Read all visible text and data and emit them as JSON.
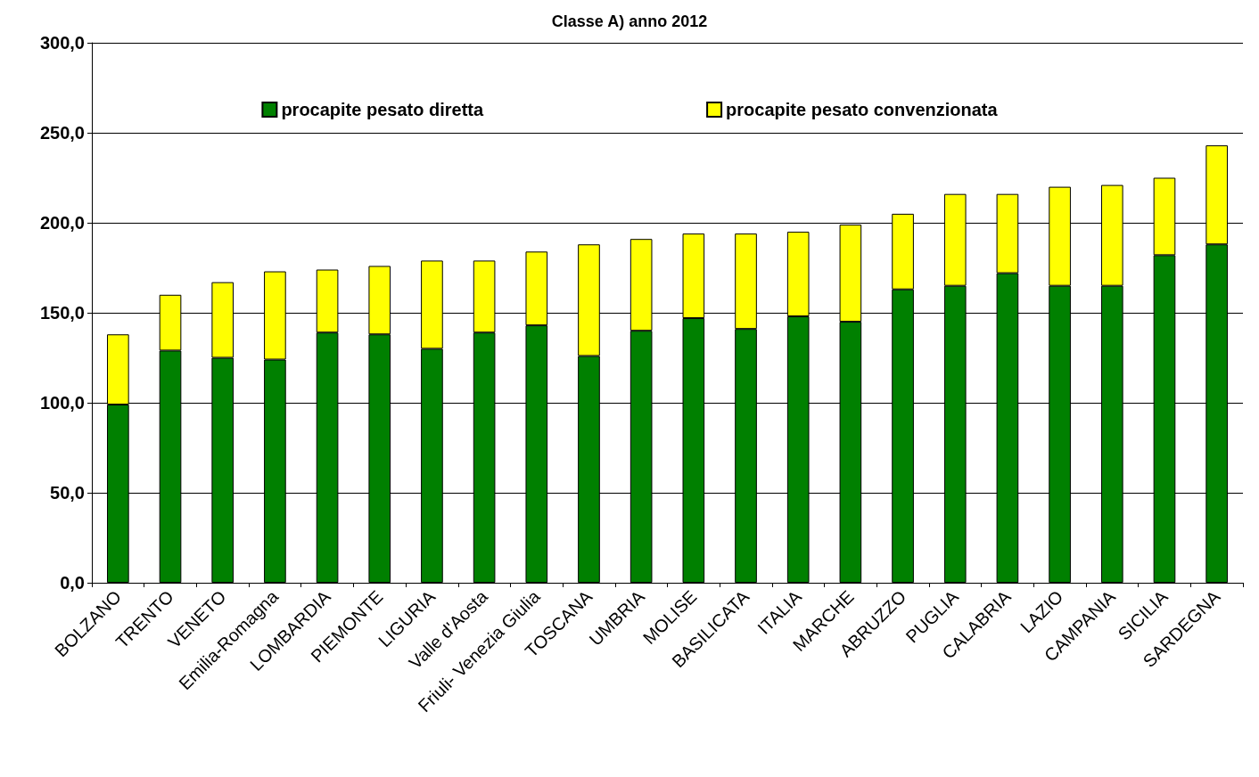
{
  "chart_data": {
    "type": "bar",
    "title": "Classe A) anno 2012",
    "stacked": true,
    "categories": [
      "BOLZANO",
      "TRENTO",
      "VENETO",
      "Emilia-Romagna",
      "LOMBARDIA",
      "PIEMONTE",
      "LIGURIA",
      "Valle d'Aosta",
      "Friuli- Venezia Giulia",
      "TOSCANA",
      "UMBRIA",
      "MOLISE",
      "BASILICATA",
      "ITALIA",
      "MARCHE",
      "ABRUZZO",
      "PUGLIA",
      "CALABRIA",
      "LAZIO",
      "CAMPANIA",
      "SICILIA",
      "SARDEGNA"
    ],
    "series": [
      {
        "name": "procapite pesato diretta",
        "color": "#008000",
        "values": [
          99,
          129,
          125,
          124,
          139,
          138,
          130,
          139,
          143,
          126,
          140,
          147,
          141,
          148,
          145,
          163,
          165,
          172,
          165,
          165,
          182,
          188
        ]
      },
      {
        "name": "procapite pesato convenzionata",
        "color": "#ffff00",
        "values": [
          39,
          31,
          42,
          49,
          35,
          38,
          49,
          40,
          41,
          62,
          51,
          47,
          53,
          47,
          54,
          42,
          51,
          44,
          55,
          56,
          43,
          55
        ]
      }
    ],
    "ylim": [
      0,
      300
    ],
    "yticks": [
      {
        "value": 0,
        "label": "0,0"
      },
      {
        "value": 50,
        "label": "50,0"
      },
      {
        "value": 100,
        "label": "100,0"
      },
      {
        "value": 150,
        "label": "150,0"
      },
      {
        "value": 200,
        "label": "200,0"
      },
      {
        "value": 250,
        "label": "250,0"
      },
      {
        "value": 300,
        "label": "300,0"
      }
    ],
    "grid": "y",
    "legend": "top"
  }
}
